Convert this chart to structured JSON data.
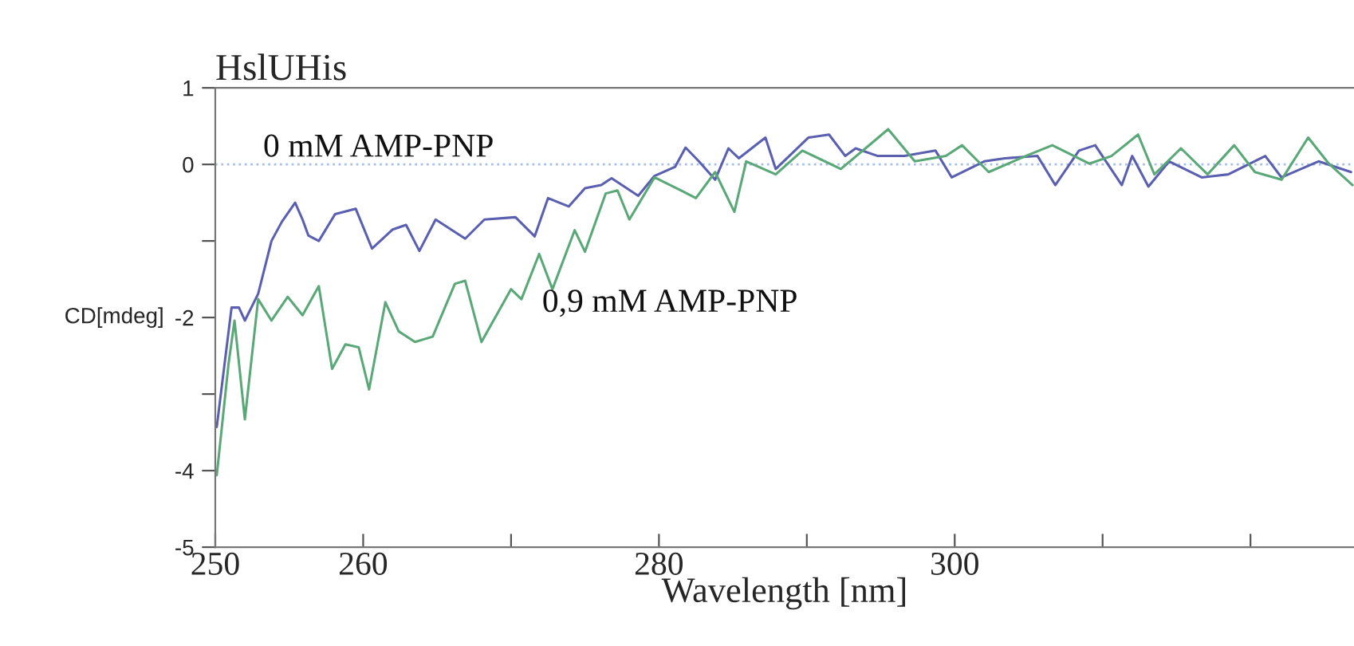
{
  "chart_data": {
    "type": "line",
    "title": "HslUHis",
    "xlabel": "Wavelength [nm]",
    "ylabel": "CD[mdeg]",
    "xlim": [
      250,
      327
    ],
    "ylim": [
      -5,
      1
    ],
    "xticks": [
      250,
      260,
      {
        "value": 270,
        "label": null
      },
      280,
      {
        "value": 290,
        "label": null
      },
      300,
      {
        "value": 310,
        "label": null
      },
      {
        "value": 320,
        "label": null
      }
    ],
    "yticks": [
      -5,
      -4,
      {
        "value": -3,
        "label": null
      },
      -2,
      {
        "value": -1,
        "label": null
      },
      0,
      1
    ],
    "grid": false,
    "legend": false,
    "marker": "none",
    "line_style": "solid",
    "ref_lines": [
      {
        "axis": "y",
        "value": 0,
        "label": null,
        "color": "#a8c0e8",
        "line_style": "dotted"
      }
    ],
    "series": [
      {
        "name": "0 mM AMP-PNP",
        "color": "#5a5fb0",
        "x": [
          250.1,
          251.1,
          251.6,
          252.0,
          252.9,
          253.8,
          254.5,
          255.4,
          255.9,
          256.3,
          257.0,
          258.1,
          259.5,
          260.6,
          262.0,
          262.9,
          263.8,
          264.9,
          266.9,
          268.2,
          270.3,
          271.6,
          272.5,
          273.9,
          275.0,
          276.1,
          276.8,
          278.6,
          279.7,
          281.1,
          281.8,
          282.7,
          283.8,
          284.7,
          285.4,
          287.2,
          287.9,
          290.1,
          291.5,
          292.6,
          293.3,
          294.8,
          296.6,
          298.7,
          299.8,
          302.0,
          303.4,
          305.6,
          306.8,
          308.4,
          309.5,
          311.3,
          312.0,
          313.1,
          314.5,
          316.7,
          318.5,
          321.0,
          322.1,
          324.6,
          326.8
        ],
        "values": [
          -3.43,
          -1.87,
          -1.87,
          -2.04,
          -1.69,
          -1.0,
          -0.75,
          -0.5,
          -0.72,
          -0.93,
          -1.0,
          -0.65,
          -0.58,
          -1.1,
          -0.85,
          -0.79,
          -1.13,
          -0.72,
          -0.97,
          -0.72,
          -0.69,
          -0.94,
          -0.44,
          -0.55,
          -0.31,
          -0.27,
          -0.18,
          -0.41,
          -0.15,
          -0.03,
          0.22,
          0.04,
          -0.2,
          0.21,
          0.08,
          0.35,
          -0.06,
          0.35,
          0.39,
          0.11,
          0.21,
          0.11,
          0.11,
          0.18,
          -0.17,
          0.04,
          0.08,
          0.11,
          -0.27,
          0.18,
          0.25,
          -0.27,
          0.11,
          -0.29,
          0.04,
          -0.17,
          -0.13,
          0.11,
          -0.17,
          0.04,
          -0.1
        ]
      },
      {
        "name": "0,9 mM AMP-PNP",
        "color": "#5aa878",
        "x": [
          250.1,
          250.9,
          251.3,
          252.0,
          252.9,
          253.8,
          254.9,
          255.9,
          257.0,
          257.9,
          258.8,
          259.7,
          260.4,
          261.5,
          262.4,
          263.5,
          264.7,
          266.2,
          266.9,
          268.0,
          270.0,
          270.7,
          271.9,
          272.8,
          274.3,
          275.0,
          276.4,
          277.2,
          278.0,
          279.7,
          281.5,
          282.5,
          283.8,
          285.1,
          285.9,
          287.9,
          289.7,
          292.3,
          294.4,
          295.5,
          297.3,
          299.4,
          300.5,
          302.3,
          304.8,
          306.6,
          309.1,
          310.6,
          312.4,
          313.5,
          315.3,
          317.1,
          318.9,
          320.3,
          322.1,
          323.9,
          325.3,
          326.9
        ],
        "values": [
          -4.06,
          -2.6,
          -2.04,
          -3.33,
          -1.76,
          -2.04,
          -1.73,
          -1.97,
          -1.59,
          -2.67,
          -2.35,
          -2.39,
          -2.94,
          -1.8,
          -2.18,
          -2.32,
          -2.25,
          -1.56,
          -1.52,
          -2.32,
          -1.63,
          -1.76,
          -1.17,
          -1.63,
          -0.86,
          -1.14,
          -0.38,
          -0.34,
          -0.72,
          -0.17,
          -0.34,
          -0.44,
          -0.1,
          -0.62,
          0.04,
          -0.13,
          0.18,
          -0.06,
          0.28,
          0.46,
          0.04,
          0.11,
          0.25,
          -0.1,
          0.11,
          0.25,
          0.01,
          0.11,
          0.39,
          -0.13,
          0.21,
          -0.13,
          0.25,
          -0.1,
          -0.2,
          0.35,
          0.01,
          -0.27
        ]
      }
    ]
  }
}
